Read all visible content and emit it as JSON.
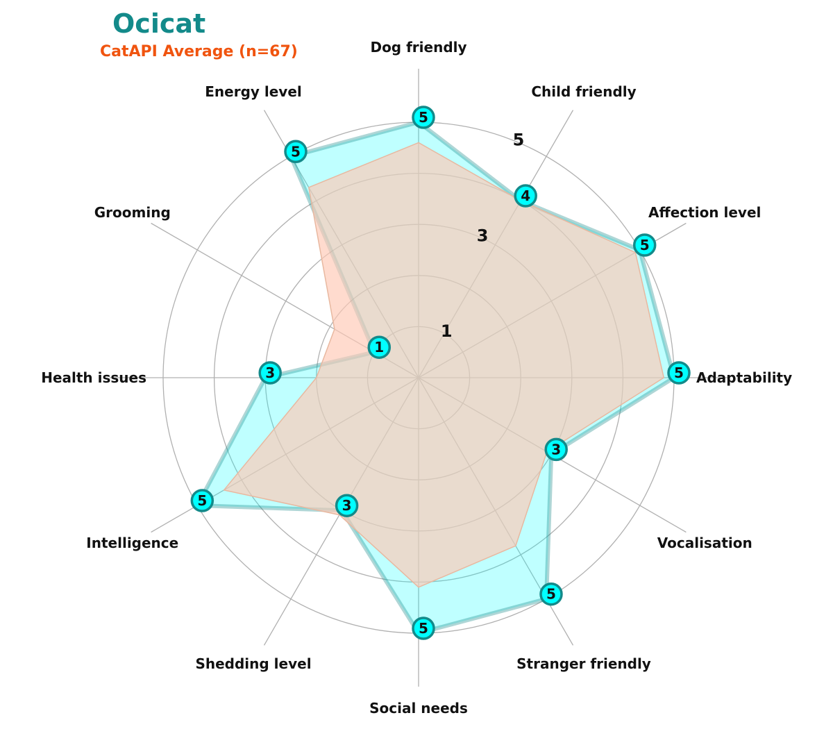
{
  "chart_data": {
    "type": "radar",
    "title": "Ocicat",
    "subtitle": "CatAPI Average (n=67)",
    "axes": [
      "Dog friendly",
      "Child friendly",
      "Affection level",
      "Adaptability",
      "Vocalisation",
      "Stranger friendly",
      "Social needs",
      "Shedding level",
      "Intelligence",
      "Health issues",
      "Grooming",
      "Energy level"
    ],
    "radial_ticks": [
      "1",
      "3",
      "5"
    ],
    "rlim": [
      0,
      5
    ],
    "grid_rings": [
      1,
      2,
      3,
      4,
      5
    ],
    "series": [
      {
        "name": "Ocicat",
        "values": [
          5,
          4,
          5,
          5,
          3,
          5,
          5,
          3,
          5,
          3,
          1,
          5
        ],
        "value_labels": [
          "5",
          "4",
          "5",
          "5",
          "3",
          "5",
          "5",
          "3",
          "5",
          "3",
          "1",
          "5"
        ],
        "color": "#00ffff",
        "edge_color": "#1a8a8a"
      },
      {
        "values": [
          4.6,
          4.0,
          4.9,
          4.8,
          2.9,
          3.8,
          4.1,
          3.1,
          4.4,
          2.0,
          1.9,
          4.3
        ],
        "color": "#ffc8b4",
        "edge_color": "#e8b8a0"
      }
    ],
    "colors": {
      "title": "#138a8a",
      "subtitle": "#f0540f",
      "grid": "#b0b0b0",
      "marker_fill": "#00ffff",
      "marker_edge": "#138a8a"
    }
  }
}
